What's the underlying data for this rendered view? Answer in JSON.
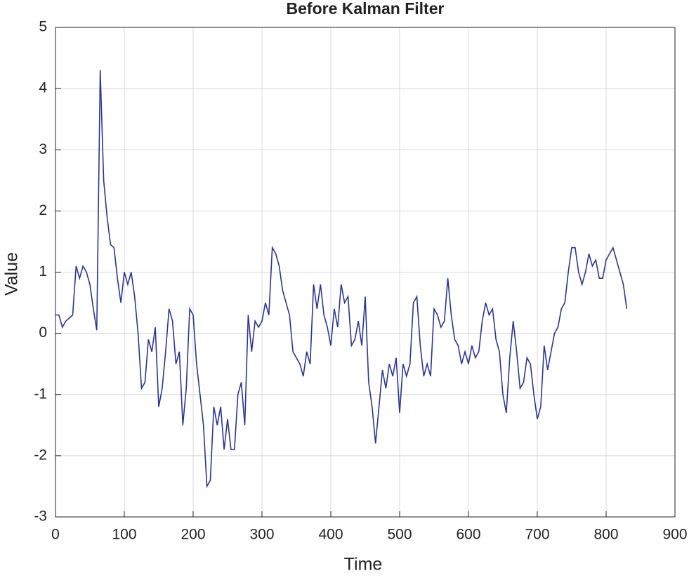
{
  "chart_data": {
    "type": "line",
    "title": "Before Kalman Filter",
    "x_label": "Time",
    "y_label": "Value",
    "x": [
      0,
      5,
      10,
      15,
      20,
      25,
      30,
      35,
      40,
      45,
      50,
      55,
      60,
      65,
      70,
      75,
      80,
      85,
      90,
      95,
      100,
      105,
      110,
      115,
      120,
      125,
      130,
      135,
      140,
      145,
      150,
      155,
      160,
      165,
      170,
      175,
      180,
      185,
      190,
      195,
      200,
      205,
      210,
      215,
      220,
      225,
      230,
      235,
      240,
      245,
      250,
      255,
      260,
      265,
      270,
      275,
      280,
      285,
      290,
      295,
      300,
      305,
      310,
      315,
      320,
      325,
      330,
      335,
      340,
      345,
      350,
      355,
      360,
      365,
      370,
      375,
      380,
      385,
      390,
      395,
      400,
      405,
      410,
      415,
      420,
      425,
      430,
      435,
      440,
      445,
      450,
      455,
      460,
      465,
      470,
      475,
      480,
      485,
      490,
      495,
      500,
      505,
      510,
      515,
      520,
      525,
      530,
      535,
      540,
      545,
      550,
      555,
      560,
      565,
      570,
      575,
      580,
      585,
      590,
      595,
      600,
      605,
      610,
      615,
      620,
      625,
      630,
      635,
      640,
      645,
      650,
      655,
      660,
      665,
      670,
      675,
      680,
      685,
      690,
      695,
      700,
      705,
      710,
      715,
      720,
      725,
      730,
      735,
      740,
      745,
      750,
      755,
      760,
      765,
      770,
      775,
      780,
      785,
      790,
      795,
      800,
      805,
      810,
      815,
      820,
      825,
      830
    ],
    "series": [
      {
        "name": "Value",
        "color": "#2b3598",
        "values": [
          0.3,
          0.3,
          0.1,
          0.2,
          0.25,
          0.3,
          1.1,
          0.9,
          1.1,
          1.0,
          0.8,
          0.4,
          0.05,
          4.3,
          2.5,
          1.9,
          1.45,
          1.4,
          0.9,
          0.5,
          1.0,
          0.8,
          1.0,
          0.6,
          0.0,
          -0.9,
          -0.8,
          -0.1,
          -0.3,
          0.1,
          -1.2,
          -0.9,
          -0.3,
          0.4,
          0.2,
          -0.5,
          -0.3,
          -1.5,
          -0.9,
          0.4,
          0.3,
          -0.5,
          -1.0,
          -1.5,
          -2.5,
          -2.4,
          -1.2,
          -1.5,
          -1.2,
          -1.9,
          -1.4,
          -1.9,
          -1.9,
          -1.0,
          -0.8,
          -1.5,
          0.3,
          -0.3,
          0.2,
          0.1,
          0.2,
          0.5,
          0.3,
          1.4,
          1.3,
          1.1,
          0.7,
          0.5,
          0.3,
          -0.3,
          -0.4,
          -0.5,
          -0.7,
          -0.3,
          -0.5,
          0.8,
          0.4,
          0.8,
          0.3,
          0.1,
          -0.2,
          0.4,
          0.1,
          0.8,
          0.5,
          0.6,
          -0.2,
          -0.1,
          0.2,
          -0.2,
          0.6,
          -0.8,
          -1.2,
          -1.8,
          -1.2,
          -0.6,
          -0.9,
          -0.5,
          -0.7,
          -0.4,
          -1.3,
          -0.5,
          -0.7,
          -0.5,
          0.5,
          0.6,
          -0.2,
          -0.7,
          -0.5,
          -0.7,
          0.4,
          0.3,
          0.1,
          0.2,
          0.9,
          0.3,
          -0.1,
          -0.2,
          -0.5,
          -0.3,
          -0.5,
          -0.2,
          -0.4,
          -0.3,
          0.2,
          0.5,
          0.3,
          0.4,
          -0.1,
          -0.3,
          -1.0,
          -1.3,
          -0.4,
          0.2,
          -0.3,
          -0.9,
          -0.8,
          -0.4,
          -0.5,
          -1.0,
          -1.4,
          -1.2,
          -0.2,
          -0.6,
          -0.3,
          0.0,
          0.1,
          0.4,
          0.5,
          1.0,
          1.4,
          1.4,
          1.0,
          0.8,
          1.0,
          1.3,
          1.1,
          1.2,
          0.9,
          0.9,
          1.2,
          1.3,
          1.4,
          1.2,
          1.0,
          0.8,
          0.4
        ]
      }
    ],
    "xlim": [
      0,
      900
    ],
    "ylim": [
      -3,
      5
    ],
    "xticks": [
      0,
      100,
      200,
      300,
      400,
      500,
      600,
      700,
      800,
      900
    ],
    "yticks": [
      -3,
      -2,
      -1,
      0,
      1,
      2,
      3,
      4,
      5
    ],
    "grid": true
  }
}
